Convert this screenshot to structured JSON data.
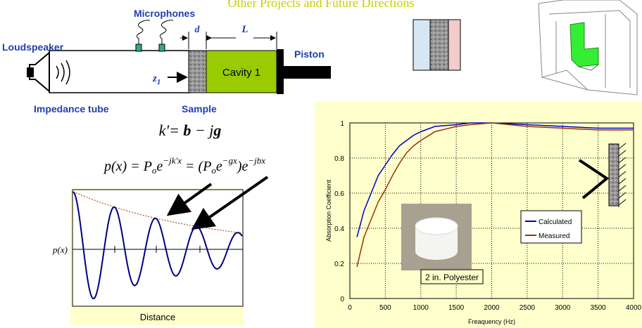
{
  "title": "Other Projects and Future Directions",
  "tube_diagram": {
    "microphones": "Microphones",
    "loudspeaker": "Loudspeaker",
    "piston": "Piston",
    "impedance_tube": "Impedance tube",
    "sample": "Sample",
    "cavity": "Cavity 1",
    "d": "d",
    "L": "L",
    "z": "z",
    "z_sub": "1"
  },
  "equations": {
    "k": [
      "k'= ",
      "b",
      " − j",
      "g"
    ],
    "p": [
      "p(x) = P",
      "o",
      "e",
      "−jk'x",
      " = (P",
      "o",
      "e",
      "−gx",
      ")e",
      "−jbx"
    ]
  },
  "wave_plot": {
    "y_label": "p(x)",
    "x_label": "Distance"
  },
  "chart_data": {
    "type": "line",
    "x_label": "Freaquency (Hz)",
    "y_label": "Absorption Coefficient",
    "annotation": "2 in. Polyester",
    "xlim": [
      0,
      4000
    ],
    "xticks": [
      0,
      500,
      1000,
      1500,
      2000,
      2500,
      3000,
      3500,
      4000
    ],
    "ylim": [
      0,
      1
    ],
    "yticks": [
      0,
      0.2,
      0.4,
      0.6,
      0.8,
      1
    ],
    "grid": true,
    "x": [
      100,
      200,
      300,
      400,
      500,
      600,
      700,
      800,
      900,
      1000,
      1200,
      1500,
      1700,
      2000,
      2500,
      3000,
      3500,
      4000
    ],
    "series": [
      {
        "name": "Calculated",
        "color": "#0000cc",
        "values": [
          0.35,
          0.5,
          0.6,
          0.7,
          0.76,
          0.82,
          0.87,
          0.9,
          0.93,
          0.95,
          0.98,
          0.99,
          1.0,
          1.0,
          0.99,
          0.98,
          0.97,
          0.97
        ]
      },
      {
        "name": "Measured",
        "color": "#993300",
        "values": [
          0.18,
          0.35,
          0.45,
          0.55,
          0.62,
          0.7,
          0.77,
          0.83,
          0.87,
          0.9,
          0.95,
          0.98,
          0.99,
          1.0,
          0.98,
          0.97,
          0.96,
          0.96
        ]
      }
    ]
  }
}
